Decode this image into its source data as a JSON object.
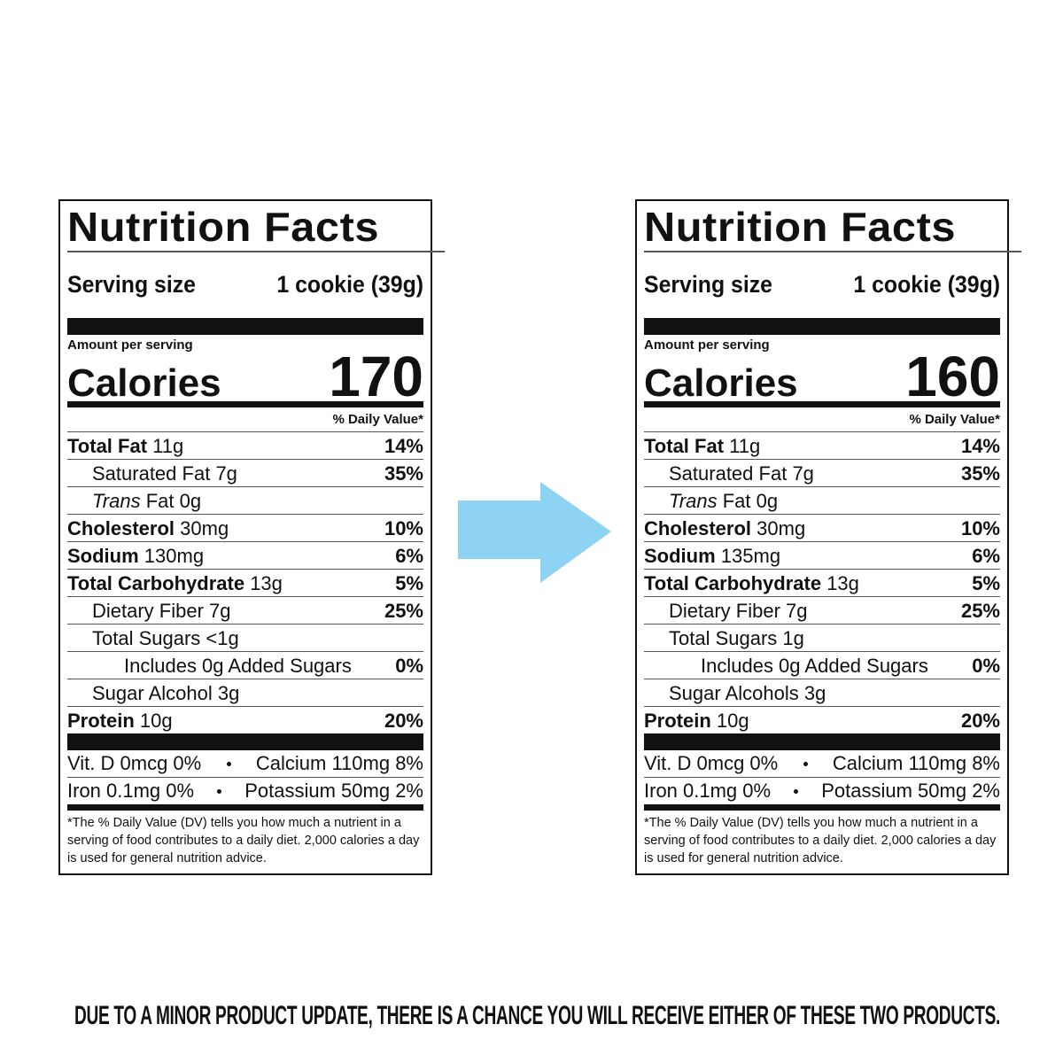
{
  "labels": [
    {
      "title": "Nutrition Facts",
      "serving_label": "Serving size",
      "serving_value": "1 cookie (39g)",
      "amount_per_serving": "Amount per serving",
      "calories_label": "Calories",
      "calories_value": 170,
      "dv_header": "% Daily Value*",
      "rows": [
        {
          "name": "Total Fat",
          "amount": "11g",
          "dv": "14%"
        },
        {
          "name": "Saturated Fat",
          "amount": "7g",
          "dv": "35%"
        },
        {
          "name": "Trans",
          "amount": "Fat 0g"
        },
        {
          "name": "Cholesterol",
          "amount": "30mg",
          "dv": "10%"
        },
        {
          "name": "Sodium",
          "amount": "130mg",
          "dv": "6%"
        },
        {
          "name": "Total Carbohydrate",
          "amount": "13g",
          "dv": "5%"
        },
        {
          "name": "Dietary Fiber",
          "amount": "7g",
          "dv": "25%"
        },
        {
          "name": "Total Sugars",
          "amount": "<1g"
        },
        {
          "name": "Includes 0g Added Sugars",
          "amount": "",
          "dv": "0%"
        },
        {
          "name": "Sugar Alcohol",
          "amount": "3g"
        },
        {
          "name": "Protein",
          "amount": "10g",
          "dv": "20%"
        }
      ],
      "vitamins": [
        [
          "Vit. D 0mcg 0%",
          "Calcium 110mg 8%"
        ],
        [
          "Iron 0.1mg 0%",
          "Potassium 50mg 2%"
        ]
      ],
      "footnote": "*The % Daily Value (DV) tells you how much a nutrient in a serving of food contributes to a daily diet. 2,000 calories a day is used for general nutrition advice."
    },
    {
      "title": "Nutrition Facts",
      "serving_label": "Serving size",
      "serving_value": "1 cookie (39g)",
      "amount_per_serving": "Amount per serving",
      "calories_label": "Calories",
      "calories_value": 160,
      "dv_header": "% Daily Value*",
      "rows": [
        {
          "name": "Total Fat",
          "amount": "11g",
          "dv": "14%"
        },
        {
          "name": "Saturated Fat",
          "amount": "7g",
          "dv": "35%"
        },
        {
          "name": "Trans",
          "amount": "Fat 0g"
        },
        {
          "name": "Cholesterol",
          "amount": "30mg",
          "dv": "10%"
        },
        {
          "name": "Sodium",
          "amount": "135mg",
          "dv": "6%"
        },
        {
          "name": "Total Carbohydrate",
          "amount": "13g",
          "dv": "5%"
        },
        {
          "name": "Dietary Fiber",
          "amount": "7g",
          "dv": "25%"
        },
        {
          "name": "Total Sugars",
          "amount": "1g"
        },
        {
          "name": "Includes 0g Added Sugars",
          "amount": "",
          "dv": "0%"
        },
        {
          "name": "Sugar Alcohols",
          "amount": "3g"
        },
        {
          "name": "Protein",
          "amount": "10g",
          "dv": "20%"
        }
      ],
      "vitamins": [
        [
          "Vit. D 0mcg 0%",
          "Calcium 110mg 8%"
        ],
        [
          "Iron 0.1mg 0%",
          "Potassium 50mg 2%"
        ]
      ],
      "footnote": "*The % Daily Value (DV) tells you how much a nutrient in a serving of food contributes to a daily diet. 2,000 calories a day is used for general nutrition advice."
    }
  ],
  "footer": "DUE TO A MINOR PRODUCT UPDATE, THERE IS A CHANCE YOU WILL RECEIVE EITHER OF THESE TWO PRODUCTS."
}
